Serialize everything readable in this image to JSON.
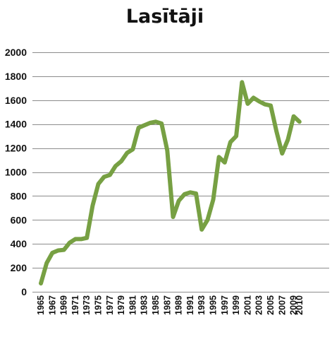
{
  "chart_data": {
    "type": "line",
    "title": "Lasītāji",
    "xlabel": "",
    "ylabel": "",
    "ylim": [
      0,
      2000
    ],
    "yticks": [
      "0",
      "200",
      "400",
      "600",
      "800",
      "1000",
      "1200",
      "1400",
      "1600",
      "1800",
      "2000"
    ],
    "xticks": [
      "1965",
      "1967",
      "1969",
      "1971",
      "1973",
      "1975",
      "1977",
      "1979",
      "1981",
      "1983",
      "1985",
      "1987",
      "1989",
      "1991",
      "1993",
      "1995",
      "1997",
      "1999",
      "2001",
      "2003",
      "2005",
      "2007",
      "2009",
      "2010"
    ],
    "grid": true,
    "legend": "none",
    "series_color": "#77a043",
    "x": [
      1965,
      1966,
      1967,
      1968,
      1969,
      1970,
      1971,
      1972,
      1973,
      1974,
      1975,
      1976,
      1977,
      1978,
      1979,
      1980,
      1981,
      1982,
      1983,
      1984,
      1985,
      1986,
      1987,
      1988,
      1989,
      1990,
      1991,
      1992,
      1993,
      1994,
      1995,
      1996,
      1997,
      1998,
      1999,
      2000,
      2001,
      2002,
      2003,
      2004,
      2005,
      2006,
      2007,
      2008,
      2009,
      2010
    ],
    "series": [
      {
        "values": [
          70,
          240,
          325,
          345,
          350,
          410,
          440,
          440,
          450,
          720,
          900,
          960,
          975,
          1050,
          1090,
          1160,
          1190,
          1370,
          1390,
          1410,
          1420,
          1405,
          1180,
          625,
          760,
          815,
          830,
          820,
          520,
          600,
          770,
          1125,
          1080,
          1250,
          1300,
          1750,
          1570,
          1620,
          1590,
          1565,
          1555,
          1340,
          1155,
          1270,
          1465,
          1420
        ]
      }
    ]
  }
}
